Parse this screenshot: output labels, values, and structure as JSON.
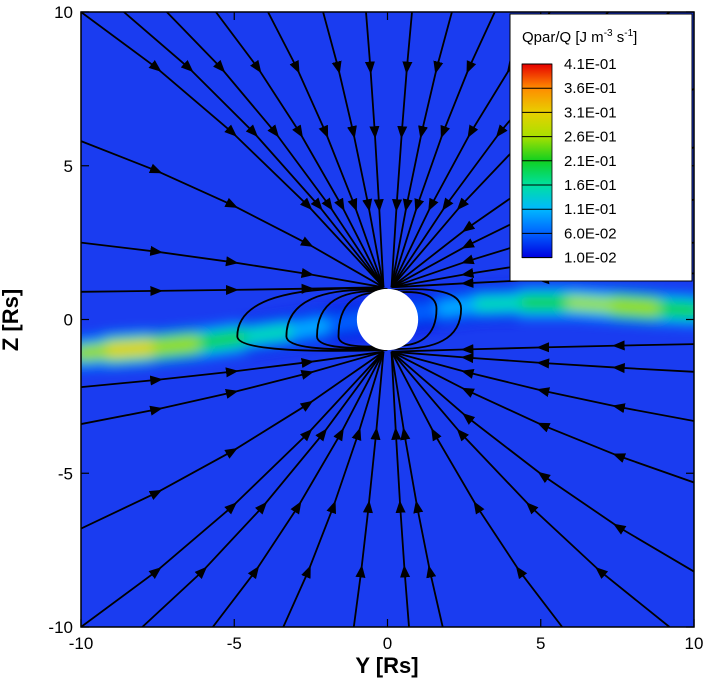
{
  "chart_data": {
    "type": "heatmap",
    "xlabel": "Y [Rs]",
    "ylabel": "Z [Rs]",
    "xlim": [
      -10,
      10
    ],
    "ylim": [
      -10,
      10
    ],
    "x_ticks": [
      "-10",
      "-5",
      "0",
      "5",
      "10"
    ],
    "y_ticks": [
      "-10",
      "-5",
      "0",
      "5",
      "10"
    ],
    "x_tick_values": [
      -10,
      -5,
      0,
      5,
      10
    ],
    "y_tick_values": [
      -10,
      -5,
      0,
      5,
      10
    ],
    "grid": false,
    "legend": {
      "title_main": "Qpar/Q [J m",
      "title_sup1": "-3",
      "title_mid": " s",
      "title_sup2": "-1",
      "title_end": "]",
      "placement": "top-right",
      "levels": [
        "4.1E-01",
        "3.6E-01",
        "3.1E-01",
        "2.6E-01",
        "2.1E-01",
        "1.6E-01",
        "1.1E-01",
        "6.0E-02",
        "1.0E-02"
      ],
      "colors": [
        "#e60000",
        "#ff8c00",
        "#e8d000",
        "#a8e000",
        "#10d020",
        "#00e0a0",
        "#00b8ff",
        "#0060ff",
        "#0000e0"
      ]
    },
    "background_color": "#1a3cf0",
    "body_color": "#ffffff",
    "body_radius": 1,
    "current_sheet": [
      {
        "y": -10.0,
        "z": -1.1,
        "level": 0.17
      },
      {
        "y": -9.0,
        "z": -1.0,
        "level": 0.36
      },
      {
        "y": -7.5,
        "z": -0.9,
        "level": 0.33
      },
      {
        "y": -6.0,
        "z": -0.75,
        "level": 0.26
      },
      {
        "y": -4.5,
        "z": -0.55,
        "level": 0.2
      },
      {
        "y": -3.0,
        "z": -0.35,
        "level": 0.14
      },
      {
        "y": -1.8,
        "z": -0.15,
        "level": 0.1
      },
      {
        "y": 1.8,
        "z": 0.35,
        "level": 0.1
      },
      {
        "y": 3.0,
        "z": 0.5,
        "level": 0.14
      },
      {
        "y": 4.5,
        "z": 0.55,
        "level": 0.2
      },
      {
        "y": 6.0,
        "z": 0.55,
        "level": 0.24
      },
      {
        "y": 7.5,
        "z": 0.45,
        "level": 0.28
      },
      {
        "y": 9.0,
        "z": 0.35,
        "level": 0.31
      },
      {
        "y": 10.0,
        "z": 0.3,
        "level": 0.2
      }
    ],
    "field_line_ends_north": [
      {
        "y": -10,
        "z": 10
      },
      {
        "y": -8.6,
        "z": 10
      },
      {
        "y": -7.2,
        "z": 10
      },
      {
        "y": -5.6,
        "z": 10
      },
      {
        "y": -3.9,
        "z": 10
      },
      {
        "y": -2.1,
        "z": 10
      },
      {
        "y": -0.7,
        "z": 10
      },
      {
        "y": 0.8,
        "z": 10
      },
      {
        "y": 2.1,
        "z": 10
      },
      {
        "y": 3.5,
        "z": 10
      },
      {
        "y": 5.3,
        "z": 10
      },
      {
        "y": 7.2,
        "z": 10
      },
      {
        "y": 9.2,
        "z": 10
      },
      {
        "y": 10,
        "z": 7.5
      },
      {
        "y": -10,
        "z": 5.8
      },
      {
        "y": -10,
        "z": 2.5
      },
      {
        "y": -10,
        "z": 0.9
      },
      {
        "y": 10,
        "z": 5.6
      },
      {
        "y": 10,
        "z": 3.9
      },
      {
        "y": 10,
        "z": 2.5
      },
      {
        "y": 10,
        "z": 1.5
      }
    ],
    "field_line_ends_south": [
      {
        "y": -10,
        "z": -10
      },
      {
        "y": -8,
        "z": -10
      },
      {
        "y": -5.7,
        "z": -10
      },
      {
        "y": -3.4,
        "z": -10
      },
      {
        "y": -1.1,
        "z": -10
      },
      {
        "y": 0.7,
        "z": -10
      },
      {
        "y": 1.8,
        "z": -10
      },
      {
        "y": 5.7,
        "z": -10
      },
      {
        "y": 9.2,
        "z": -10
      },
      {
        "y": -10,
        "z": -6.8
      },
      {
        "y": -10,
        "z": -3.4
      },
      {
        "y": -10,
        "z": -2.2
      },
      {
        "y": 10,
        "z": -8.2
      },
      {
        "y": 10,
        "z": -5.3
      },
      {
        "y": 10,
        "z": -3.3
      },
      {
        "y": 10,
        "z": -1.7
      },
      {
        "y": 10,
        "z": -0.8
      }
    ],
    "closed_loops": [
      {
        "y_left": -4.9,
        "y_right": 0,
        "half_height": 1.0
      },
      {
        "y_left": -3.3,
        "y_right": 0,
        "half_height": 0.95
      },
      {
        "y_left": -2.3,
        "y_right": 0,
        "half_height": 0.9
      },
      {
        "y_left": -1.6,
        "y_right": 0,
        "half_height": 0.85
      },
      {
        "y_left": 0,
        "y_right": 2.4,
        "half_height": 0.95
      },
      {
        "y_left": 0,
        "y_right": 1.6,
        "half_height": 0.85
      }
    ]
  }
}
